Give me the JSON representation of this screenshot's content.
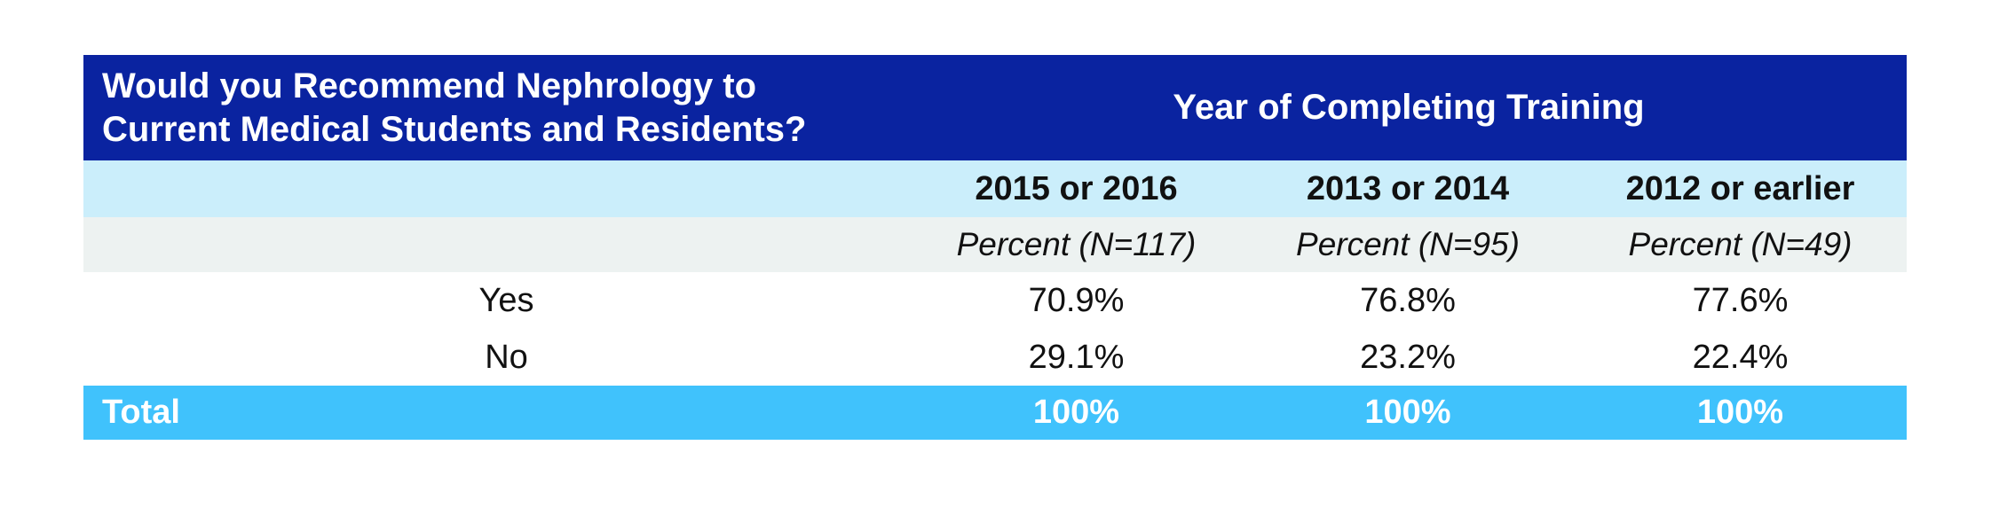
{
  "table": {
    "question": "Would you Recommend Nephrology to\nCurrent Medical Students and Residents?",
    "group_header": "Year of Completing Training",
    "columns": [
      "2015 or 2016",
      "2013 or 2014",
      "2012 or earlier"
    ],
    "subheaders": [
      "Percent (N=117)",
      "Percent (N=95)",
      "Percent (N=49)"
    ],
    "rows": [
      {
        "label": "Yes",
        "values": [
          "70.9%",
          "76.8%",
          "77.6%"
        ]
      },
      {
        "label": "No",
        "values": [
          "29.1%",
          "23.2%",
          "22.4%"
        ]
      }
    ],
    "total": {
      "label": "Total",
      "values": [
        "100%",
        "100%",
        "100%"
      ]
    }
  },
  "colors": {
    "header_blue": "#0a23a0",
    "year_row_blue": "#cbeefb",
    "subheader_gray": "#edf2f1",
    "total_cyan": "#40c2fc",
    "header_text": "#ffffff",
    "body_text": "#111111"
  },
  "chart_data": {
    "type": "table",
    "title": "Would you Recommend Nephrology to Current Medical Students and Residents?",
    "group_header": "Year of Completing Training",
    "columns": [
      "2015 or 2016",
      "2013 or 2014",
      "2012 or earlier"
    ],
    "sample_sizes": [
      117,
      95,
      49
    ],
    "unit": "percent",
    "rows": [
      {
        "label": "Yes",
        "values": [
          70.9,
          76.8,
          77.6
        ]
      },
      {
        "label": "No",
        "values": [
          29.1,
          23.2,
          22.4
        ]
      },
      {
        "label": "Total",
        "values": [
          100,
          100,
          100
        ]
      }
    ]
  }
}
